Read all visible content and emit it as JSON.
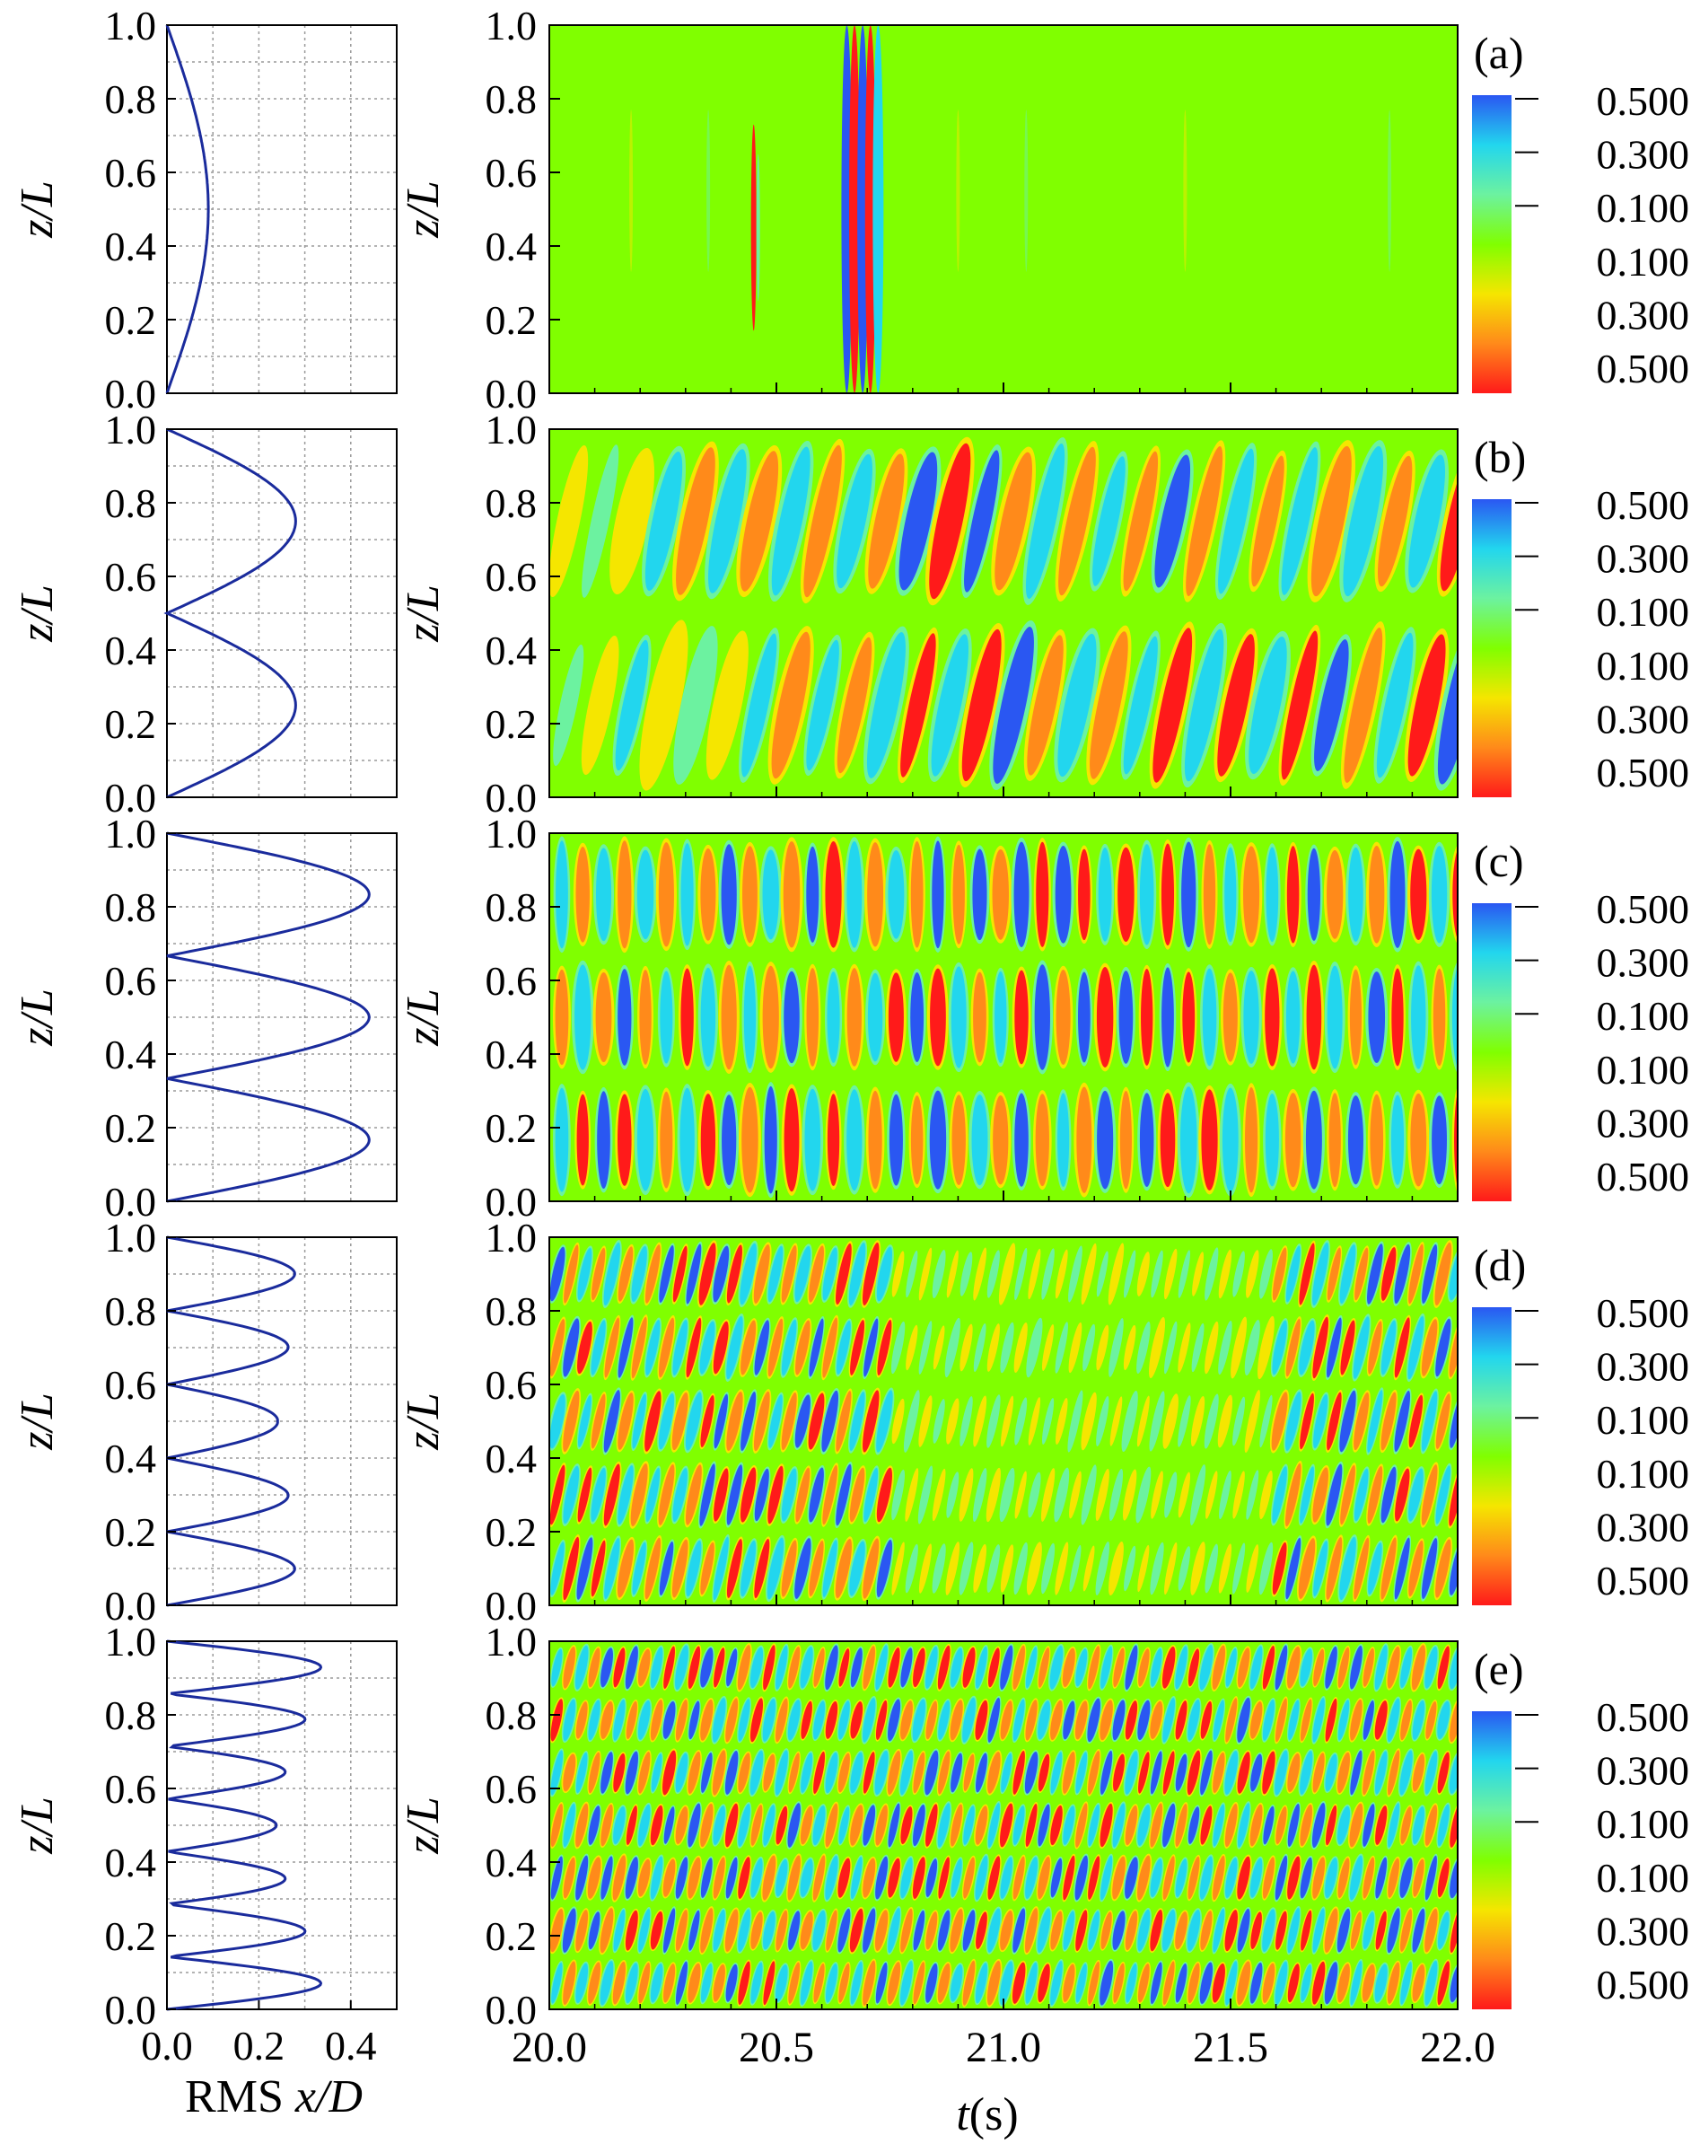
{
  "figure": {
    "x_axis_label_italic": "t",
    "x_axis_label_rest": "(s)",
    "rms_axis_label_prefix": "RMS ",
    "rms_axis_label_italic": "x/D",
    "y_axis_label": "z/L"
  },
  "colors": {
    "profile_line": "#1a2b9c",
    "grid": "#9a9a9a",
    "colormap": [
      "#ff1a1a",
      "#ff8a1a",
      "#f5e600",
      "#80ff00",
      "#6cf2a0",
      "#22d6ee",
      "#2a57f2"
    ]
  },
  "chart_data": [
    {
      "panel_label": "(a)",
      "mode_count": 1,
      "rms_profile": {
        "type": "line",
        "xlim": [
          0.0,
          0.5
        ],
        "ylim": [
          0.0,
          1.0
        ],
        "peak_rms": 0.09,
        "peak_at_z": 0.5,
        "grid": true
      },
      "contour": {
        "type": "heatmap",
        "xlim": [
          20.0,
          22.0
        ],
        "ylim": [
          0.0,
          1.0
        ],
        "events": [
          {
            "t": 20.68,
            "w": 0.09
          },
          {
            "t": 20.45,
            "w": 0.02
          }
        ],
        "burst": true,
        "grid": false
      },
      "colorbar": {
        "labels": [
          "0.500",
          "0.300",
          "0.100",
          "0.100",
          "0.300",
          "0.500"
        ],
        "range": [
          -0.5,
          0.5
        ]
      }
    },
    {
      "panel_label": "(b)",
      "mode_count": 2,
      "rms_profile": {
        "type": "line",
        "xlim": [
          0.0,
          0.5
        ],
        "ylim": [
          0.0,
          1.0
        ],
        "peak_rms": 0.28,
        "peak_at_z": [
          0.25,
          0.75
        ],
        "grid": true
      },
      "contour": {
        "type": "heatmap",
        "xlim": [
          20.0,
          22.0
        ],
        "ylim": [
          0.0,
          1.0
        ],
        "period_s": 0.14,
        "grid": false
      },
      "colorbar": {
        "labels": [
          "0.500",
          "0.300",
          "0.100",
          "0.100",
          "0.300",
          "0.500"
        ],
        "range": [
          -0.5,
          0.5
        ]
      }
    },
    {
      "panel_label": "(c)",
      "mode_count": 3,
      "rms_profile": {
        "type": "line",
        "xlim": [
          0.0,
          0.5
        ],
        "ylim": [
          0.0,
          1.0
        ],
        "peak_rms": 0.44,
        "peak_at_z": [
          0.17,
          0.5,
          0.83
        ],
        "grid": true
      },
      "contour": {
        "type": "heatmap",
        "xlim": [
          20.0,
          22.0
        ],
        "ylim": [
          0.0,
          1.0
        ],
        "period_s": 0.092,
        "grid": false
      },
      "colorbar": {
        "labels": [
          "0.500",
          "0.300",
          "0.100",
          "0.100",
          "0.300",
          "0.500"
        ],
        "range": [
          -0.5,
          0.5
        ]
      }
    },
    {
      "panel_label": "(d)",
      "mode_count": 5,
      "rms_profile": {
        "type": "line",
        "xlim": [
          0.0,
          0.5
        ],
        "ylim": [
          0.0,
          1.0
        ],
        "peak_rms": 0.28,
        "peak_at_z": [
          0.1,
          0.3,
          0.5,
          0.7,
          0.9
        ],
        "grid": true
      },
      "contour": {
        "type": "heatmap",
        "xlim": [
          20.0,
          22.0
        ],
        "ylim": [
          0.0,
          1.0
        ],
        "period_s": 0.06,
        "grid": false
      },
      "colorbar": {
        "labels": [
          "0.500",
          "0.300",
          "0.100",
          "0.100",
          "0.300",
          "0.500"
        ],
        "range": [
          -0.5,
          0.5
        ]
      }
    },
    {
      "panel_label": "(e)",
      "mode_count": 7,
      "rms_profile": {
        "type": "line",
        "xlim": [
          0.0,
          0.5
        ],
        "ylim": [
          0.0,
          1.0
        ],
        "peak_rms": 0.34,
        "peak_at_z": [
          0.07,
          0.21,
          0.36,
          0.5,
          0.64,
          0.79,
          0.93
        ],
        "grid": true
      },
      "contour": {
        "type": "heatmap",
        "xlim": [
          20.0,
          22.0
        ],
        "ylim": [
          0.0,
          1.0
        ],
        "period_s": 0.055,
        "grid": false
      },
      "colorbar": {
        "labels": [
          "0.500",
          "0.300",
          "0.100",
          "0.100",
          "0.300",
          "0.500"
        ],
        "range": [
          -0.5,
          0.5
        ]
      }
    }
  ],
  "axes": {
    "z_ticks": [
      "0.0",
      "0.2",
      "0.4",
      "0.6",
      "0.8",
      "1.0"
    ],
    "rms_ticks": [
      "0.0",
      "0.2",
      "0.4"
    ],
    "t_ticks": [
      "20.0",
      "20.5",
      "21.0",
      "21.5",
      "22.0"
    ]
  }
}
